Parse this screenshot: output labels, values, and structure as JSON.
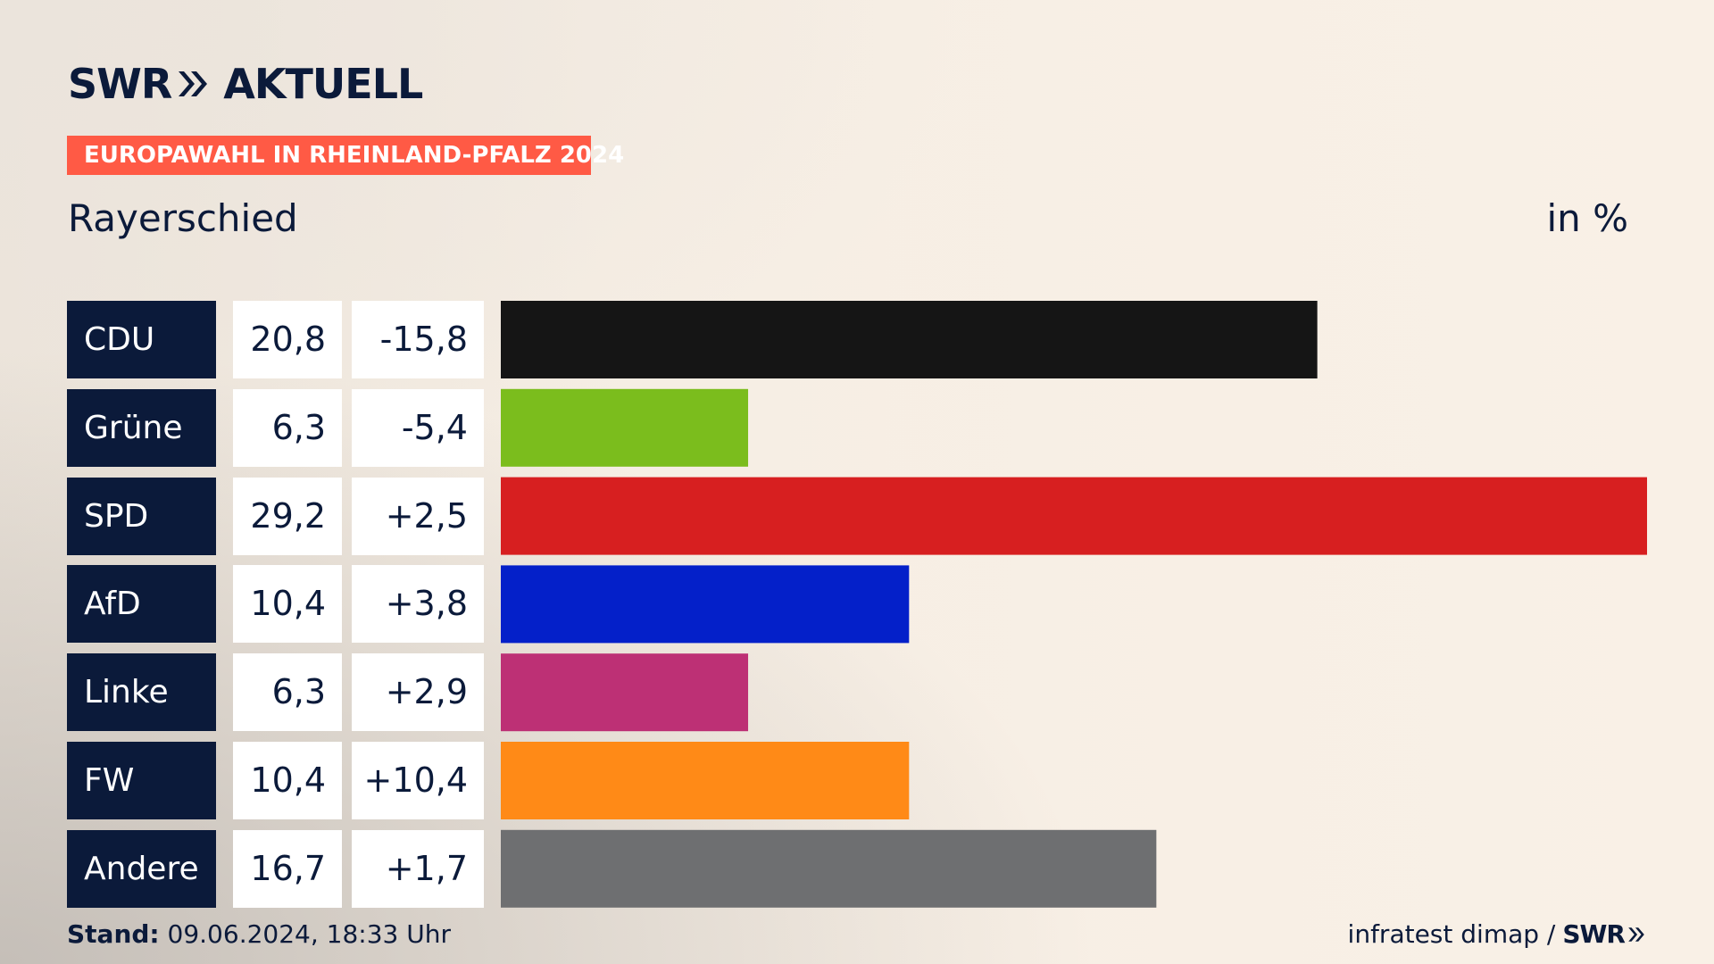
{
  "header": {
    "brand": "SWR",
    "brand_suffix": "AKTUELL",
    "badge": "EUROPAWAHL IN RHEINLAND-PFALZ 2024",
    "location": "Rayerschied",
    "unit": "in %"
  },
  "footer": {
    "stand_label": "Stand:",
    "stand_value": "09.06.2024, 18:33 Uhr",
    "source": "infratest dimap /",
    "source_brand": "SWR"
  },
  "table": {
    "rows": [
      {
        "party": "CDU",
        "result": "20,8",
        "diff": "-15,8"
      },
      {
        "party": "Grüne",
        "result": "6,3",
        "diff": "-5,4"
      },
      {
        "party": "SPD",
        "result": "29,2",
        "diff": "+2,5"
      },
      {
        "party": "AfD",
        "result": "10,4",
        "diff": "+3,8"
      },
      {
        "party": "Linke",
        "result": "6,3",
        "diff": "+2,9"
      },
      {
        "party": "FW",
        "result": "10,4",
        "diff": "+10,4"
      },
      {
        "party": "Andere",
        "result": "16,7",
        "diff": "+1,7"
      }
    ]
  },
  "chart_data": {
    "type": "bar",
    "orientation": "horizontal",
    "title": "EUROPAWAHL IN RHEINLAND-PFALZ 2024",
    "subtitle": "Rayerschied",
    "unit": "in %",
    "categories": [
      "CDU",
      "Grüne",
      "SPD",
      "AfD",
      "Linke",
      "FW",
      "Andere"
    ],
    "values": [
      20.8,
      6.3,
      29.2,
      10.4,
      6.3,
      10.4,
      16.7
    ],
    "differences": [
      -15.8,
      -5.4,
      2.5,
      3.8,
      2.9,
      10.4,
      1.7
    ],
    "colors": [
      "#151515",
      "#7bbd1d",
      "#d71f20",
      "#0420c9",
      "#bd3075",
      "#ff8a17",
      "#6e6f71"
    ],
    "xlim": [
      0,
      29.2
    ],
    "grid": false,
    "legend": "none"
  },
  "colors": {
    "navy": "#0b1a3a",
    "badge": "#ff5a45"
  }
}
